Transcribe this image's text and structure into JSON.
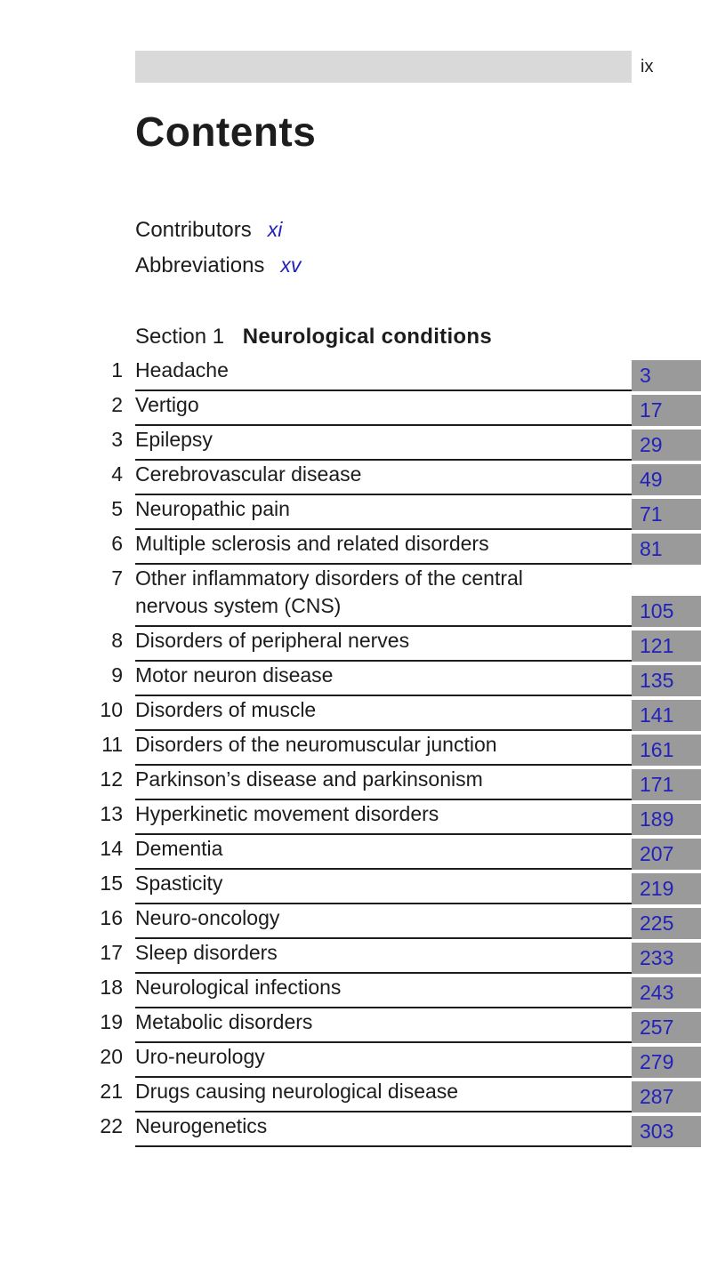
{
  "page": {
    "folio": "ix",
    "title": "Contents"
  },
  "front_matter": [
    {
      "label": "Contributors",
      "page": "xi"
    },
    {
      "label": "Abbreviations",
      "page": "xv"
    }
  ],
  "section": {
    "prefix": "Section 1",
    "title": "Neurological conditions"
  },
  "chapters": [
    {
      "num": "1",
      "title": "Headache",
      "page": "3"
    },
    {
      "num": "2",
      "title": "Vertigo",
      "page": "17"
    },
    {
      "num": "3",
      "title": "Epilepsy",
      "page": "29"
    },
    {
      "num": "4",
      "title": "Cerebrovascular disease",
      "page": "49"
    },
    {
      "num": "5",
      "title": "Neuropathic pain",
      "page": "71"
    },
    {
      "num": "6",
      "title": "Multiple sclerosis and related disorders",
      "page": "81"
    },
    {
      "num": "7",
      "title": "Other inflammatory disorders of the central\nnervous system (CNS)",
      "page": "105"
    },
    {
      "num": "8",
      "title": "Disorders of peripheral nerves",
      "page": "121"
    },
    {
      "num": "9",
      "title": "Motor neuron disease",
      "page": "135"
    },
    {
      "num": "10",
      "title": "Disorders of muscle",
      "page": "141"
    },
    {
      "num": "11",
      "title": "Disorders of the neuromuscular junction",
      "page": "161"
    },
    {
      "num": "12",
      "title": "Parkinson’s disease and parkinsonism",
      "page": "171"
    },
    {
      "num": "13",
      "title": "Hyperkinetic movement disorders",
      "page": "189"
    },
    {
      "num": "14",
      "title": "Dementia",
      "page": "207"
    },
    {
      "num": "15",
      "title": "Spasticity",
      "page": "219"
    },
    {
      "num": "16",
      "title": "Neuro-oncology",
      "page": "225"
    },
    {
      "num": "17",
      "title": "Sleep disorders",
      "page": "233"
    },
    {
      "num": "18",
      "title": "Neurological infections",
      "page": "243"
    },
    {
      "num": "19",
      "title": "Metabolic disorders",
      "page": "257"
    },
    {
      "num": "20",
      "title": "Uro-neurology",
      "page": "279"
    },
    {
      "num": "21",
      "title": "Drugs causing neurological disease",
      "page": "287"
    },
    {
      "num": "22",
      "title": "Neurogenetics",
      "page": "303"
    }
  ],
  "colors": {
    "link_blue": "#2222bb",
    "page_box_gray": "#9a9a9a",
    "header_bar_gray": "#d9d9d9",
    "rule_black": "#1d1d1d"
  }
}
